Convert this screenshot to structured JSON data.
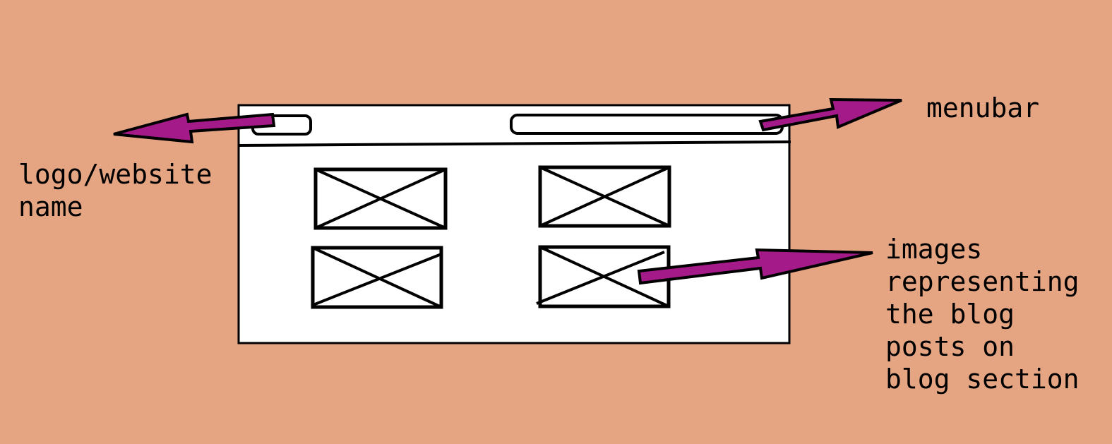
{
  "colors": {
    "background": "#e5a583",
    "arrow": "#a51a89",
    "stroke": "#000000",
    "frame_fill": "#ffffff"
  },
  "labels": {
    "logo": [
      "logo/website",
      "name"
    ],
    "menubar": [
      "menubar"
    ],
    "images": [
      "images",
      "representing",
      "the blog",
      "posts on",
      "blog section"
    ]
  },
  "wireframe": {
    "image_placeholder_icon": "crossed-box-icon",
    "image_placeholder_count": 4
  }
}
